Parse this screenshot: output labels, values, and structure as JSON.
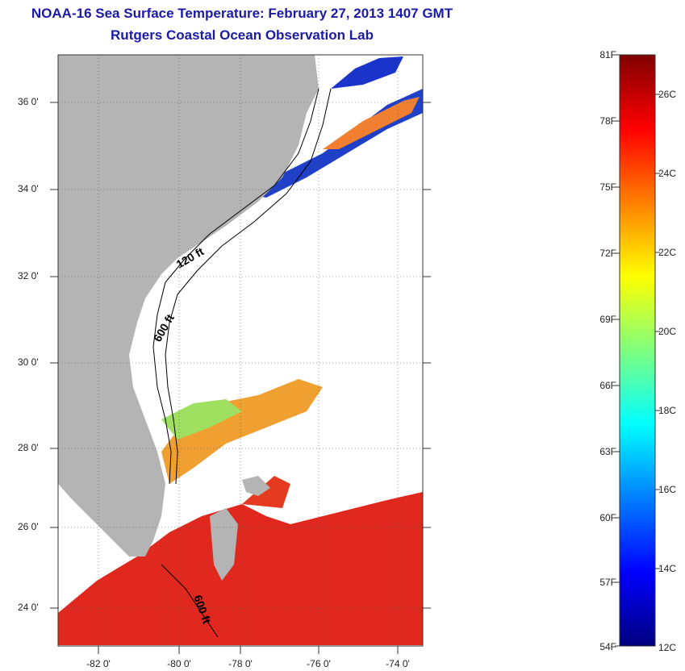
{
  "header": {
    "title": "NOAA-16 Sea Surface Temperature:  February 27, 2013 1407 GMT",
    "subtitle": "Rutgers Coastal Ocean Observation Lab"
  },
  "map": {
    "lat_labels": [
      "36 0'",
      "34 0'",
      "32 0'",
      "30 0'",
      "28 0'",
      "26 0'",
      "24 0'"
    ],
    "lon_labels": [
      "-82 0'",
      "-80 0'",
      "-78 0'",
      "-76 0'",
      "-74 0'"
    ],
    "contour_labels": [
      "120 ft",
      "600 ft",
      "600 ft"
    ],
    "colors": {
      "land": "#b4b4b4",
      "ocean_nodata": "#ffffff",
      "warm": "#e0281e",
      "cold": "#1a33c8"
    }
  },
  "colorbar": {
    "fahrenheit_labels": [
      "81F",
      "78F",
      "75F",
      "72F",
      "69F",
      "66F",
      "63F",
      "60F",
      "57F",
      "54F"
    ],
    "celsius_labels": [
      "26C",
      "24C",
      "22C",
      "20C",
      "18C",
      "16C",
      "14C",
      "12C"
    ],
    "colors": [
      "#00007f",
      "#0000ff",
      "#007fff",
      "#00ffff",
      "#7fff7f",
      "#ffff00",
      "#ff7f00",
      "#ff0000",
      "#7f0000"
    ]
  }
}
